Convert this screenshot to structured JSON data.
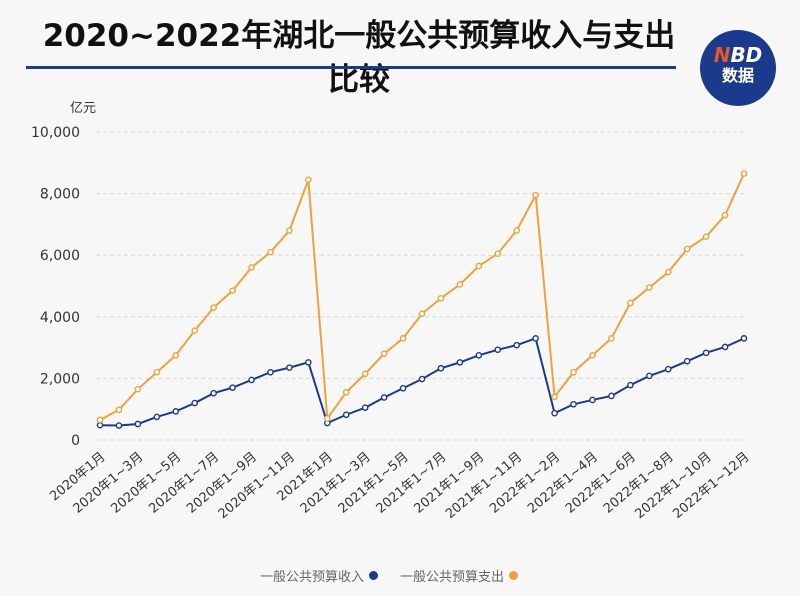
{
  "title": "2020~2022年湖北一般公共预算收入与支出比较",
  "logo": {
    "brand_n": "N",
    "brand_rest": "BD",
    "brand_cn": "数据"
  },
  "colors": {
    "income": "#1b3a8c",
    "expenditure": "#f0a23a",
    "title_rule": "#1b3a8c"
  },
  "chart_data": {
    "type": "line",
    "title": "2020~2022年湖北一般公共预算收入与支出比较",
    "ylabel": "亿元",
    "ylim": [
      0,
      10000
    ],
    "yticks": [
      "0",
      "2,000",
      "4,000",
      "6,000",
      "8,000",
      "10,000"
    ],
    "grid": true,
    "legend_position": "bottom",
    "x": [
      "2020年1月",
      "2020年1~2月",
      "2020年1~3月",
      "2020年1~4月",
      "2020年1~5月",
      "2020年1~6月",
      "2020年1~7月",
      "2020年1~8月",
      "2020年1~9月",
      "2020年1~10月",
      "2020年1~11月",
      "2020年1~12月",
      "2021年1月",
      "2021年1~2月",
      "2021年1~3月",
      "2021年1~4月",
      "2021年1~5月",
      "2021年1~6月",
      "2021年1~7月",
      "2021年1~8月",
      "2021年1~9月",
      "2021年1~10月",
      "2021年1~11月",
      "2021年1~12月",
      "2022年1~2月",
      "2022年1~3月",
      "2022年1~4月",
      "2022年1~5月",
      "2022年1~6月",
      "2022年1~7月",
      "2022年1~8月",
      "2022年1~9月",
      "2022年1~10月",
      "2022年1~11月",
      "2022年1~12月"
    ],
    "xticklabels": [
      "2020年1月",
      "2020年1~3月",
      "2020年1~5月",
      "2020年1~7月",
      "2020年1~9月",
      "2020年1~11月",
      "2021年1月",
      "2021年1~3月",
      "2021年1~5月",
      "2021年1~7月",
      "2021年1~9月",
      "2021年1~11月",
      "2022年1~2月",
      "2022年1~4月",
      "2022年1~6月",
      "2022年1~8月",
      "2022年1~10月",
      "2022年1~12月"
    ],
    "series": [
      {
        "name": "一般公共预算收入",
        "color": "#1b3a8c",
        "values": [
          480,
          470,
          520,
          750,
          930,
          1200,
          1520,
          1700,
          1950,
          2200,
          2350,
          2520,
          550,
          820,
          1050,
          1380,
          1680,
          1980,
          2330,
          2520,
          2750,
          2930,
          3080,
          3300,
          870,
          1160,
          1300,
          1430,
          1780,
          2080,
          2300,
          2560,
          2830,
          3020,
          3300
        ]
      },
      {
        "name": "一般公共预算支出",
        "color": "#f0a23a",
        "values": [
          650,
          980,
          1650,
          2200,
          2750,
          3550,
          4300,
          4850,
          5600,
          6100,
          6800,
          8450,
          700,
          1550,
          2150,
          2800,
          3300,
          4100,
          4600,
          5050,
          5650,
          6050,
          6800,
          7950,
          1400,
          2200,
          2750,
          3300,
          4450,
          4950,
          5450,
          6200,
          6600,
          7300,
          8650
        ]
      }
    ]
  }
}
